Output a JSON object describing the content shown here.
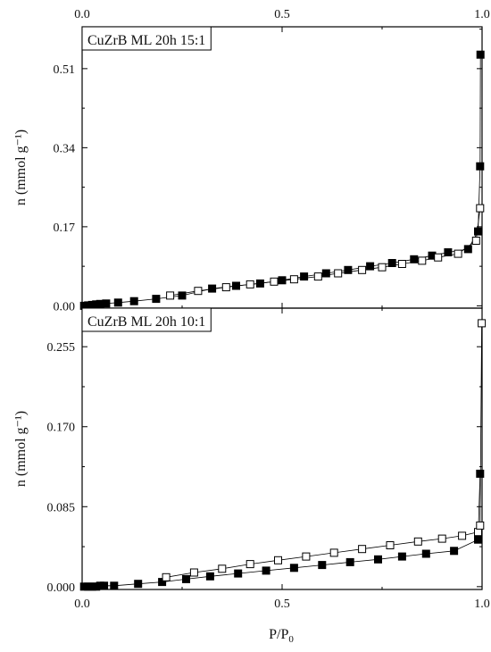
{
  "chart_data": [
    {
      "type": "scatter",
      "label": "CuZrB ML 20h 15:1",
      "ylabel": "n (mmol g⁻¹)",
      "xlim": [
        0,
        1
      ],
      "ylim": [
        -0.005,
        0.6
      ],
      "yticks": [
        "0.00",
        "0.17",
        "0.34",
        "0.51"
      ],
      "ytick_values": [
        0,
        0.17,
        0.34,
        0.51
      ],
      "series": [
        {
          "name": "",
          "marker": "filled-square",
          "x": [
            0.005,
            0.015,
            0.025,
            0.035,
            0.045,
            0.06,
            0.09,
            0.13,
            0.185,
            0.25,
            0.325,
            0.385,
            0.445,
            0.5,
            0.555,
            0.61,
            0.665,
            0.72,
            0.775,
            0.83,
            0.875,
            0.915,
            0.965,
            0.99,
            0.995,
            0.996
          ],
          "values": [
            0.0,
            0.001,
            0.002,
            0.003,
            0.004,
            0.005,
            0.007,
            0.01,
            0.015,
            0.022,
            0.037,
            0.043,
            0.048,
            0.055,
            0.063,
            0.07,
            0.077,
            0.085,
            0.092,
            0.1,
            0.108,
            0.115,
            0.122,
            0.16,
            0.3,
            0.54
          ]
        },
        {
          "name": "",
          "marker": "open-square",
          "x": [
            0.22,
            0.29,
            0.36,
            0.42,
            0.48,
            0.53,
            0.59,
            0.64,
            0.7,
            0.75,
            0.8,
            0.85,
            0.89,
            0.94,
            0.985,
            0.995
          ],
          "values": [
            0.022,
            0.032,
            0.04,
            0.046,
            0.052,
            0.057,
            0.063,
            0.07,
            0.077,
            0.083,
            0.09,
            0.097,
            0.104,
            0.112,
            0.14,
            0.21
          ]
        }
      ]
    },
    {
      "type": "scatter",
      "label": "CuZrB ML 20h 10:1",
      "ylabel": "n (mmol g⁻¹)",
      "xlabel": "P/P₀",
      "xlim": [
        0,
        1
      ],
      "ylim": [
        -0.003,
        0.296
      ],
      "yticks": [
        "0.000",
        "0.085",
        "0.170",
        "0.255"
      ],
      "ytick_values": [
        0,
        0.085,
        0.17,
        0.255
      ],
      "series": [
        {
          "name": "",
          "marker": "filled-square",
          "x": [
            0.005,
            0.015,
            0.025,
            0.035,
            0.045,
            0.055,
            0.08,
            0.14,
            0.2,
            0.26,
            0.32,
            0.39,
            0.46,
            0.53,
            0.6,
            0.67,
            0.74,
            0.8,
            0.86,
            0.93,
            0.99,
            0.995
          ],
          "values": [
            0.0,
            0.0,
            0.0,
            0.0,
            0.001,
            0.001,
            0.001,
            0.003,
            0.005,
            0.008,
            0.011,
            0.014,
            0.017,
            0.02,
            0.023,
            0.026,
            0.029,
            0.032,
            0.035,
            0.038,
            0.05,
            0.12
          ]
        },
        {
          "name": "",
          "marker": "open-square",
          "x": [
            0.21,
            0.28,
            0.35,
            0.42,
            0.49,
            0.56,
            0.63,
            0.7,
            0.77,
            0.84,
            0.9,
            0.95,
            0.99,
            0.995,
            0.999
          ],
          "values": [
            0.01,
            0.015,
            0.019,
            0.024,
            0.028,
            0.032,
            0.036,
            0.04,
            0.044,
            0.048,
            0.051,
            0.054,
            0.058,
            0.065,
            0.28
          ]
        }
      ]
    }
  ],
  "axes": {
    "bottom_ticks": [
      "0.0",
      "0.5",
      "1.0"
    ],
    "bottom_tick_values": [
      0,
      0.5,
      1
    ],
    "top_ticks": [
      "0.0",
      "0.5",
      "1.0"
    ],
    "top_tick_values": [
      0,
      0.5,
      1
    ],
    "xlabel_main": "P/P",
    "xlabel_sub": "0"
  }
}
